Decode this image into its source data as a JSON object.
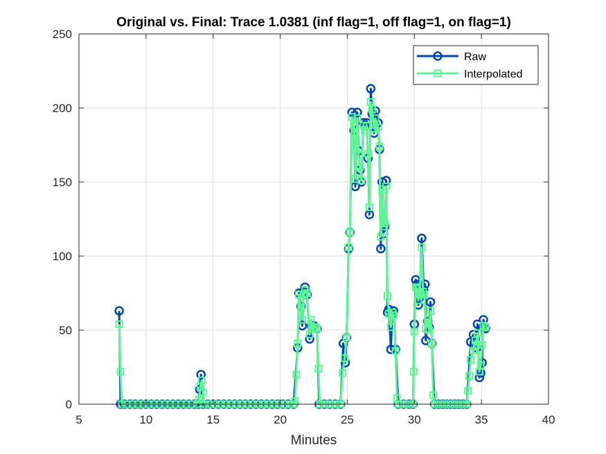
{
  "chart_data": {
    "type": "line",
    "title": "Original vs. Final: Trace 1.0381 (inf flag=1, off flag=1, on flag=1)",
    "xlabel": "Minutes",
    "ylabel": "",
    "xlim": [
      5,
      40
    ],
    "ylim": [
      0,
      250
    ],
    "xticks": [
      "5",
      "10",
      "15",
      "20",
      "25",
      "30",
      "35",
      "40"
    ],
    "yticks": [
      "0",
      "50",
      "100",
      "150",
      "200",
      "250"
    ],
    "grid": true,
    "legend_position": "top-right",
    "series": [
      {
        "name": "Raw",
        "color": "#0047ab",
        "marker": "circle",
        "points": [
          [
            8.0,
            63
          ],
          [
            8.1,
            0
          ],
          [
            8.4,
            0
          ],
          [
            8.8,
            0
          ],
          [
            9.2,
            0
          ],
          [
            9.6,
            0
          ],
          [
            10.0,
            0
          ],
          [
            10.4,
            0
          ],
          [
            10.8,
            0
          ],
          [
            11.2,
            0
          ],
          [
            11.6,
            0
          ],
          [
            12.0,
            0
          ],
          [
            12.4,
            0
          ],
          [
            12.8,
            0
          ],
          [
            13.2,
            0
          ],
          [
            13.6,
            0
          ],
          [
            13.9,
            0
          ],
          [
            14.0,
            10
          ],
          [
            14.1,
            20
          ],
          [
            14.25,
            0
          ],
          [
            14.6,
            0
          ],
          [
            15.0,
            0
          ],
          [
            15.4,
            0
          ],
          [
            15.8,
            0
          ],
          [
            16.2,
            0
          ],
          [
            16.6,
            0
          ],
          [
            17.0,
            0
          ],
          [
            17.4,
            0
          ],
          [
            17.8,
            0
          ],
          [
            18.2,
            0
          ],
          [
            18.6,
            0
          ],
          [
            19.0,
            0
          ],
          [
            19.4,
            0
          ],
          [
            19.8,
            0
          ],
          [
            20.2,
            0
          ],
          [
            20.6,
            0
          ],
          [
            21.0,
            0
          ],
          [
            21.3,
            38
          ],
          [
            21.4,
            75
          ],
          [
            21.55,
            66
          ],
          [
            21.65,
            53
          ],
          [
            21.75,
            76
          ],
          [
            21.85,
            79
          ],
          [
            22.0,
            74
          ],
          [
            22.2,
            44
          ],
          [
            22.35,
            53
          ],
          [
            22.5,
            53
          ],
          [
            22.75,
            51
          ],
          [
            22.9,
            0
          ],
          [
            23.3,
            0
          ],
          [
            23.7,
            0
          ],
          [
            24.1,
            0
          ],
          [
            24.5,
            0
          ],
          [
            24.7,
            41
          ],
          [
            24.85,
            28
          ],
          [
            24.95,
            45
          ],
          [
            25.1,
            105
          ],
          [
            25.2,
            116
          ],
          [
            25.35,
            197
          ],
          [
            25.5,
            185
          ],
          [
            25.6,
            147
          ],
          [
            25.75,
            197
          ],
          [
            25.85,
            171
          ],
          [
            25.95,
            158
          ],
          [
            26.05,
            150
          ],
          [
            26.2,
            190
          ],
          [
            26.3,
            188
          ],
          [
            26.45,
            190
          ],
          [
            26.55,
            166
          ],
          [
            26.65,
            128
          ],
          [
            26.75,
            213
          ],
          [
            26.85,
            196
          ],
          [
            27.0,
            183
          ],
          [
            27.1,
            198
          ],
          [
            27.3,
            190
          ],
          [
            27.4,
            172
          ],
          [
            27.5,
            105
          ],
          [
            27.6,
            150
          ],
          [
            27.7,
            115
          ],
          [
            27.8,
            120
          ],
          [
            27.9,
            151
          ],
          [
            28.0,
            62
          ],
          [
            28.1,
            64
          ],
          [
            28.25,
            37
          ],
          [
            28.35,
            61
          ],
          [
            28.45,
            63
          ],
          [
            28.6,
            37
          ],
          [
            28.8,
            0
          ],
          [
            29.2,
            0
          ],
          [
            29.6,
            0
          ],
          [
            29.9,
            0
          ],
          [
            30.0,
            54
          ],
          [
            30.1,
            84
          ],
          [
            30.2,
            81
          ],
          [
            30.3,
            67
          ],
          [
            30.4,
            72
          ],
          [
            30.55,
            112
          ],
          [
            30.7,
            77
          ],
          [
            30.8,
            81
          ],
          [
            30.85,
            43
          ],
          [
            31.0,
            56
          ],
          [
            31.1,
            52
          ],
          [
            31.2,
            69
          ],
          [
            31.3,
            41
          ],
          [
            31.5,
            0
          ],
          [
            31.8,
            0
          ],
          [
            32.1,
            0
          ],
          [
            32.4,
            0
          ],
          [
            32.7,
            0
          ],
          [
            33.0,
            0
          ],
          [
            33.3,
            0
          ],
          [
            33.6,
            0
          ],
          [
            33.9,
            0
          ],
          [
            34.2,
            42
          ],
          [
            34.4,
            47
          ],
          [
            34.55,
            44
          ],
          [
            34.65,
            38
          ],
          [
            34.7,
            54
          ],
          [
            34.85,
            18
          ],
          [
            34.95,
            21
          ],
          [
            35.05,
            28
          ],
          [
            35.1,
            52
          ],
          [
            35.15,
            57
          ],
          [
            35.3,
            51
          ]
        ]
      },
      {
        "name": "Interpolated",
        "color": "#5cf794",
        "marker": "square",
        "points": [
          [
            8.0,
            54
          ],
          [
            8.1,
            22
          ],
          [
            8.2,
            0
          ],
          [
            8.6,
            0
          ],
          [
            9.0,
            0
          ],
          [
            9.4,
            0
          ],
          [
            9.8,
            0
          ],
          [
            10.2,
            0
          ],
          [
            10.6,
            0
          ],
          [
            11.0,
            0
          ],
          [
            11.4,
            0
          ],
          [
            11.8,
            0
          ],
          [
            12.2,
            0
          ],
          [
            12.6,
            0
          ],
          [
            13.0,
            0
          ],
          [
            13.4,
            0
          ],
          [
            13.8,
            0
          ],
          [
            13.95,
            3
          ],
          [
            14.05,
            12
          ],
          [
            14.15,
            16
          ],
          [
            14.25,
            8
          ],
          [
            14.35,
            0
          ],
          [
            14.7,
            0
          ],
          [
            15.1,
            0
          ],
          [
            15.5,
            0
          ],
          [
            15.9,
            0
          ],
          [
            16.3,
            0
          ],
          [
            16.7,
            0
          ],
          [
            17.1,
            0
          ],
          [
            17.5,
            0
          ],
          [
            17.9,
            0
          ],
          [
            18.3,
            0
          ],
          [
            18.7,
            0
          ],
          [
            19.1,
            0
          ],
          [
            19.5,
            0
          ],
          [
            19.9,
            0
          ],
          [
            20.3,
            0
          ],
          [
            20.7,
            0
          ],
          [
            21.0,
            0
          ],
          [
            21.1,
            2
          ],
          [
            21.2,
            20
          ],
          [
            21.3,
            41
          ],
          [
            21.4,
            74
          ],
          [
            21.55,
            65
          ],
          [
            21.65,
            57
          ],
          [
            21.75,
            74
          ],
          [
            21.85,
            77
          ],
          [
            22.0,
            75
          ],
          [
            22.2,
            47
          ],
          [
            22.3,
            57
          ],
          [
            22.45,
            51
          ],
          [
            22.6,
            52
          ],
          [
            22.75,
            51
          ],
          [
            22.85,
            24
          ],
          [
            22.95,
            0
          ],
          [
            23.3,
            0
          ],
          [
            23.7,
            0
          ],
          [
            24.1,
            0
          ],
          [
            24.5,
            0
          ],
          [
            24.65,
            21
          ],
          [
            24.8,
            31
          ],
          [
            24.95,
            45
          ],
          [
            25.1,
            106
          ],
          [
            25.2,
            116
          ],
          [
            25.35,
            194
          ],
          [
            25.5,
            188
          ],
          [
            25.6,
            152
          ],
          [
            25.75,
            193
          ],
          [
            25.85,
            168
          ],
          [
            25.95,
            160
          ],
          [
            26.05,
            151
          ],
          [
            26.2,
            188
          ],
          [
            26.3,
            185
          ],
          [
            26.45,
            188
          ],
          [
            26.55,
            169
          ],
          [
            26.65,
            133
          ],
          [
            26.75,
            204
          ],
          [
            26.85,
            199
          ],
          [
            27.0,
            186
          ],
          [
            27.1,
            193
          ],
          [
            27.3,
            187
          ],
          [
            27.4,
            174
          ],
          [
            27.5,
            113
          ],
          [
            27.6,
            145
          ],
          [
            27.7,
            120
          ],
          [
            27.8,
            122
          ],
          [
            27.9,
            147
          ],
          [
            28.0,
            73
          ],
          [
            28.1,
            61
          ],
          [
            28.25,
            52
          ],
          [
            28.35,
            62
          ],
          [
            28.45,
            60
          ],
          [
            28.6,
            36
          ],
          [
            28.7,
            4
          ],
          [
            28.8,
            0
          ],
          [
            29.2,
            0
          ],
          [
            29.6,
            0
          ],
          [
            29.9,
            0
          ],
          [
            29.95,
            22
          ],
          [
            30.0,
            49
          ],
          [
            30.1,
            79
          ],
          [
            30.2,
            78
          ],
          [
            30.3,
            70
          ],
          [
            30.4,
            75
          ],
          [
            30.55,
            106
          ],
          [
            30.65,
            76
          ],
          [
            30.75,
            74
          ],
          [
            30.85,
            51
          ],
          [
            31.0,
            57
          ],
          [
            31.1,
            50
          ],
          [
            31.2,
            63
          ],
          [
            31.3,
            41
          ],
          [
            31.4,
            6
          ],
          [
            31.5,
            0
          ],
          [
            31.8,
            0
          ],
          [
            32.1,
            0
          ],
          [
            32.4,
            0
          ],
          [
            32.7,
            0
          ],
          [
            33.0,
            0
          ],
          [
            33.3,
            0
          ],
          [
            33.6,
            0
          ],
          [
            33.9,
            0
          ],
          [
            34.0,
            9
          ],
          [
            34.1,
            19
          ],
          [
            34.2,
            30
          ],
          [
            34.4,
            36
          ],
          [
            34.55,
            43
          ],
          [
            34.65,
            40
          ],
          [
            34.7,
            48
          ],
          [
            34.85,
            22
          ],
          [
            34.95,
            26
          ],
          [
            35.05,
            40
          ],
          [
            35.15,
            53
          ],
          [
            35.3,
            52
          ]
        ]
      }
    ]
  }
}
